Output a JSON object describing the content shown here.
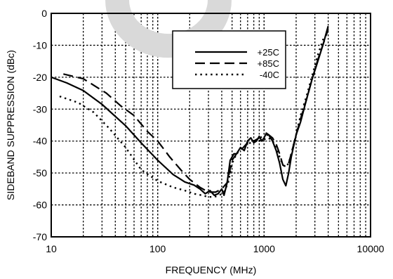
{
  "chart_data": {
    "type": "line",
    "title": "",
    "xlabel": "FREQUENCY (MHz)",
    "ylabel": "SIDEBAND SUPPRESSION (dBc)",
    "x_scale": "log",
    "xlim": [
      10,
      10000
    ],
    "ylim": [
      -70,
      0
    ],
    "grid": true,
    "legend_position": "top-right",
    "x_ticks": [
      {
        "value": 10,
        "label": "10"
      },
      {
        "value": 100,
        "label": "100"
      },
      {
        "value": 1000,
        "label": "1000"
      },
      {
        "value": 10000,
        "label": "10000"
      }
    ],
    "y_ticks": [
      {
        "value": 0,
        "label": "0"
      },
      {
        "value": -10,
        "label": "-10"
      },
      {
        "value": -20,
        "label": "-20"
      },
      {
        "value": -30,
        "label": "-30"
      },
      {
        "value": -40,
        "label": "-40"
      },
      {
        "value": -50,
        "label": "-50"
      },
      {
        "value": -60,
        "label": "-60"
      },
      {
        "value": -70,
        "label": "-70"
      }
    ],
    "series": [
      {
        "name": "+25C",
        "style": "solid",
        "color": "#000000",
        "x": [
          10,
          14,
          20,
          30,
          50,
          70,
          100,
          140,
          180,
          220,
          250,
          280,
          310,
          340,
          370,
          400,
          420,
          450,
          480,
          520,
          550,
          600,
          650,
          700,
          750,
          800,
          850,
          900,
          950,
          1000,
          1050,
          1100,
          1150,
          1200,
          1300,
          1400,
          1500,
          1600,
          1700,
          1800,
          2000,
          2200,
          2500,
          2800,
          3200,
          3600,
          4000
        ],
        "y": [
          -20,
          -21.8,
          -24.2,
          -28.5,
          -35.2,
          -40.6,
          -46,
          -50.5,
          -52.8,
          -53.8,
          -55,
          -56.5,
          -55.5,
          -57,
          -56.5,
          -55,
          -57,
          -53,
          -46,
          -44,
          -44,
          -42,
          -43,
          -40,
          -39,
          -40.5,
          -40,
          -38.5,
          -40,
          -39,
          -37.5,
          -38,
          -39,
          -40,
          -43,
          -47,
          -52,
          -54,
          -50,
          -45,
          -38,
          -34,
          -27,
          -21,
          -15,
          -9.5,
          -4
        ]
      },
      {
        "name": "+85C",
        "style": "dashed",
        "color": "#000000",
        "x": [
          13,
          20,
          33,
          45,
          60,
          80,
          100,
          130,
          170,
          200,
          250,
          300,
          350,
          400,
          450,
          500,
          550,
          600,
          700,
          800,
          900,
          1000,
          1100,
          1200,
          1300,
          1400,
          1500,
          1600,
          1700,
          1800,
          2000,
          2200,
          2500,
          2800,
          3200,
          3600,
          4000
        ],
        "y": [
          -19,
          -20.5,
          -25,
          -29,
          -32,
          -37,
          -40,
          -45,
          -49.5,
          -52,
          -54.5,
          -56,
          -56,
          -55,
          -53,
          -46,
          -44,
          -43,
          -40.5,
          -40,
          -39,
          -38.5,
          -38,
          -39,
          -41,
          -44,
          -47.5,
          -48,
          -47,
          -44,
          -38,
          -33,
          -27,
          -21,
          -14.5,
          -9.5,
          -5
        ]
      },
      {
        "name": "-40C",
        "style": "dotted",
        "color": "#000000",
        "x": [
          12,
          18,
          25,
          35,
          50,
          70,
          100,
          140,
          180,
          220,
          260,
          300,
          340,
          380,
          420,
          460,
          500,
          550,
          600,
          700,
          800,
          900,
          1000,
          1100,
          1200,
          1300,
          1400,
          1500,
          1600,
          1700,
          1800,
          2000,
          2200,
          2500,
          2800,
          3200,
          3600
        ],
        "y": [
          -26,
          -28,
          -31,
          -36,
          -42,
          -49,
          -52.5,
          -54.5,
          -55.5,
          -56.5,
          -57,
          -57.5,
          -57.5,
          -57,
          -56,
          -53,
          -47,
          -44,
          -42.5,
          -41,
          -40,
          -40,
          -39.5,
          -39,
          -40,
          -42,
          -45,
          -47.5,
          -48,
          -47,
          -44,
          -38,
          -32,
          -26,
          -20,
          -13,
          -8
        ]
      }
    ]
  }
}
